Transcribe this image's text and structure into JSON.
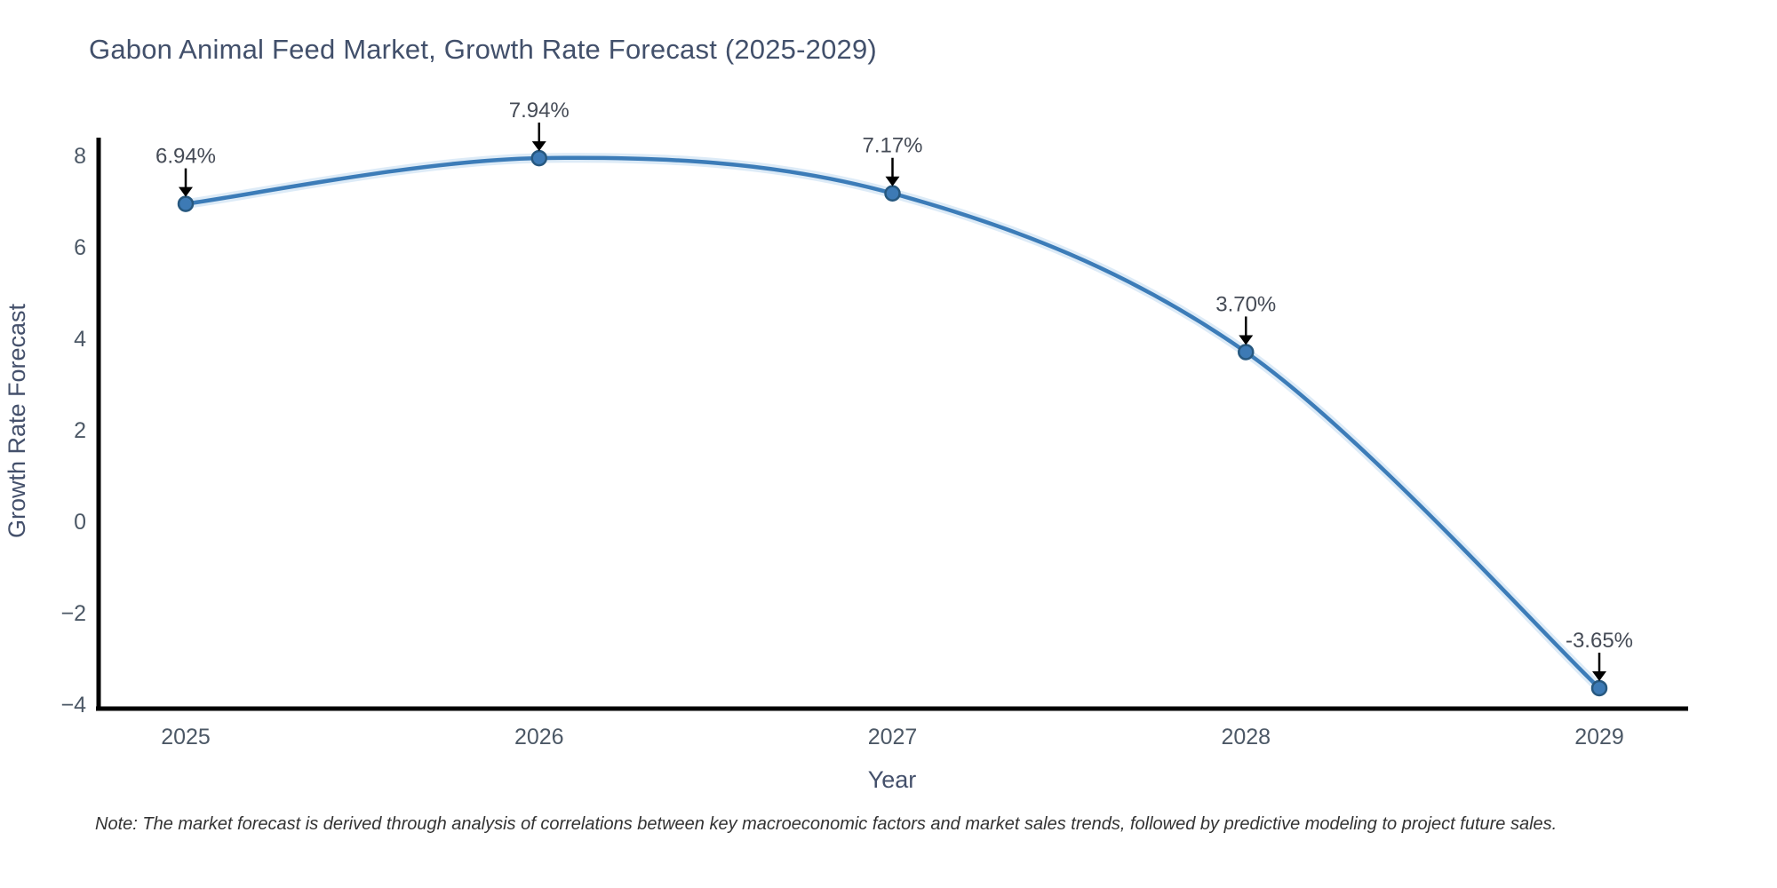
{
  "note": "Note: The market forecast is derived through analysis of correlations between key macroeconomic factors and market sales trends, followed by predictive modeling to project future sales.",
  "chart_data": {
    "type": "line",
    "title": "Gabon Animal Feed Market, Growth Rate Forecast (2025-2029)",
    "x": [
      "2025",
      "2026",
      "2027",
      "2028",
      "2029"
    ],
    "values": [
      6.94,
      7.94,
      7.17,
      3.7,
      -3.65
    ],
    "point_labels": [
      "6.94%",
      "7.94%",
      "7.17%",
      "3.70%",
      "-3.65%"
    ],
    "xlabel": "Year",
    "ylabel": "Growth Rate Forecast",
    "ylim": [
      -4,
      8
    ],
    "yticks": [
      8,
      6,
      4,
      2,
      0,
      -2,
      -4
    ],
    "grid": false,
    "legend": "none",
    "curve": "smooth",
    "annotation_style": "label-above-with-down-arrow"
  },
  "colors": {
    "line": "#3c7cb8",
    "line_halo": "#d9e9f6",
    "marker_fill": "#3d7ab5",
    "marker_edge": "#27587f",
    "axis": "#000000",
    "title_text": "#42506b",
    "tick_text": "#4c5866",
    "axis_title_text": "#44506b",
    "annotation_text": "#454b56",
    "arrow": "#000000",
    "note_text": "#333333"
  }
}
